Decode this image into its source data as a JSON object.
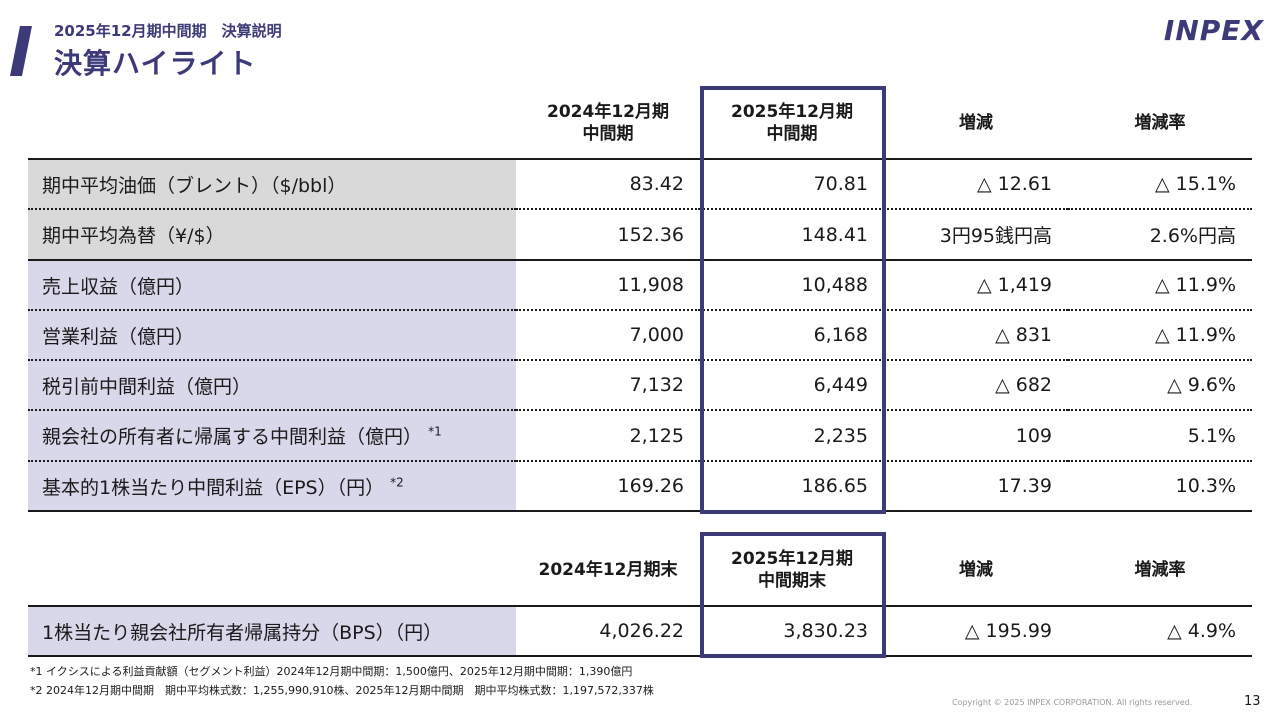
{
  "header": {
    "subtitle": "2025年12月期中間期　決算説明",
    "title": "決算ハイライト",
    "logo": "INPEX"
  },
  "table1": {
    "headers": [
      "2024年12月期\n中間期",
      "2025年12月期\n中間期",
      "増減",
      "増減率"
    ],
    "rows": [
      {
        "label": "期中平均油価（ブレント）（$/bbl）",
        "sup": "",
        "v1": "83.42",
        "v2": "70.81",
        "diff": "△ 12.61",
        "rate": "△ 15.1%"
      },
      {
        "label": "期中平均為替（¥/$）",
        "sup": "",
        "v1": "152.36",
        "v2": "148.41",
        "diff": "3円95銭円高",
        "rate": "2.6%円高"
      },
      {
        "label": "売上収益（億円）",
        "sup": "",
        "v1": "11,908",
        "v2": "10,488",
        "diff": "△ 1,419",
        "rate": "△ 11.9%"
      },
      {
        "label": "営業利益（億円）",
        "sup": "",
        "v1": "7,000",
        "v2": "6,168",
        "diff": "△ 831",
        "rate": "△ 11.9%"
      },
      {
        "label": "税引前中間利益（億円）",
        "sup": "",
        "v1": "7,132",
        "v2": "6,449",
        "diff": "△ 682",
        "rate": "△ 9.6%"
      },
      {
        "label": "親会社の所有者に帰属する中間利益（億円）",
        "sup": "*1",
        "v1": "2,125",
        "v2": "2,235",
        "diff": "109",
        "rate": "5.1%"
      },
      {
        "label": "基本的1株当たり中間利益（EPS）（円）",
        "sup": "*2",
        "v1": "169.26",
        "v2": "186.65",
        "diff": "17.39",
        "rate": "10.3%"
      }
    ]
  },
  "table2": {
    "headers": [
      "2024年12月期末",
      "2025年12月期\n中間期末",
      "増減",
      "増減率"
    ],
    "rows": [
      {
        "label": "1株当たり親会社所有者帰属持分（BPS）（円）",
        "v1": "4,026.22",
        "v2": "3,830.23",
        "diff": "△ 195.99",
        "rate": "△ 4.9%"
      }
    ]
  },
  "footnotes": [
    "*1 イクシスによる利益貢献額（セグメント利益）2024年12月期中間期：1,500億円、2025年12月期中間期：1,390億円",
    "*2 2024年12月期中間期　期中平均株式数：1,255,990,910株、2025年12月期中間期　期中平均株式数：1,197,572,337株"
  ],
  "copyright": "Copyright © 2025 INPEX CORPORATION. All rights reserved.",
  "page_number": "13",
  "colors": {
    "brand": "#3c3a78",
    "gray_row": "#d9d9d9",
    "lavender_row": "#d9d7ea"
  }
}
